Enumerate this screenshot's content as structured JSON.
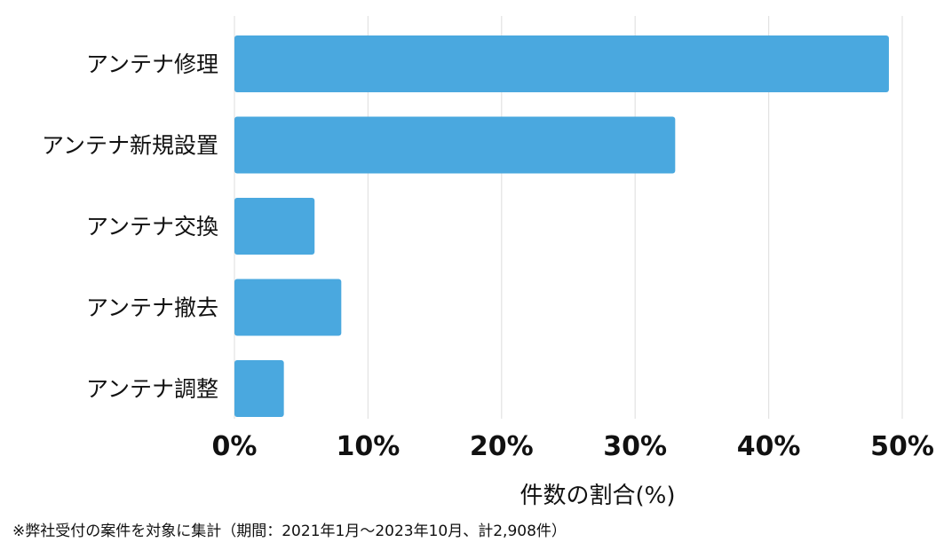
{
  "chart_data": {
    "type": "bar",
    "orientation": "horizontal",
    "categories": [
      "アンテナ修理",
      "アンテナ新規設置",
      "アンテナ交換",
      "アンテナ撤去",
      "アンテナ調整"
    ],
    "values": [
      49,
      33,
      6,
      8,
      3.7
    ],
    "xlabel": "件数の割合(%)",
    "xlim": [
      0,
      50
    ],
    "xticks": [
      0,
      10,
      20,
      30,
      40,
      50
    ],
    "tick_suffix": "%",
    "grid": "vertical",
    "bar_color": "#4AA8DF",
    "grid_color": "#E2E2E2"
  },
  "footnote": "※弊社受付の案件を対象に集計（期間：2021年1月～2023年10月、計2,908件）"
}
